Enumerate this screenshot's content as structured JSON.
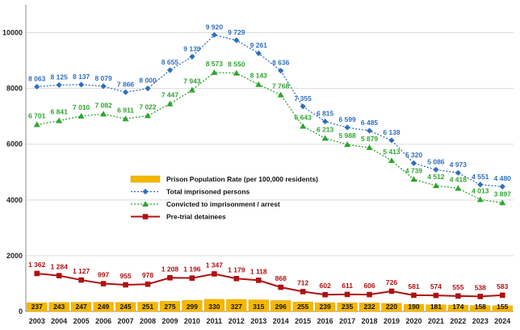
{
  "chart_data": {
    "type": "line",
    "categories": [
      "2003",
      "2004",
      "2005",
      "2006",
      "2007",
      "2008",
      "2009",
      "2010",
      "2011",
      "2012",
      "2013",
      "2014",
      "2015",
      "2016",
      "2017",
      "2018",
      "2019",
      "2020",
      "2021",
      "2022",
      "2023",
      "2024"
    ],
    "ylim": [
      0,
      11000
    ],
    "yticks": [
      0,
      2000,
      4000,
      6000,
      8000,
      10000
    ],
    "ytick_labels": [
      "0",
      "2000",
      "4000",
      "6000",
      "8000",
      "10000"
    ],
    "grid": true,
    "legend_position": "center-left",
    "series": [
      {
        "key": "rate",
        "name": "Prison Population Rate (per 100,000 residents)",
        "type": "bar",
        "color": "#f5b800",
        "values": [
          237,
          243,
          247,
          249,
          245,
          251,
          275,
          299,
          330,
          327,
          315,
          296,
          255,
          239,
          235,
          232,
          220,
          190,
          181,
          174,
          158,
          155
        ],
        "labels": [
          "237",
          "243",
          "247",
          "249",
          "245",
          "251",
          "275",
          "299",
          "330",
          "327",
          "315",
          "296",
          "255",
          "239",
          "235",
          "232",
          "220",
          "190",
          "181",
          "174",
          "158",
          "155"
        ]
      },
      {
        "key": "total",
        "name": "Total imprisoned persons",
        "type": "line",
        "color": "#2f6fbf",
        "marker": "diamond",
        "values": [
          8063,
          8125,
          8137,
          8079,
          7866,
          8000,
          8655,
          9139,
          9920,
          9729,
          9261,
          8636,
          7355,
          6815,
          6599,
          6485,
          6138,
          5320,
          5086,
          4973,
          4551,
          4480
        ],
        "labels": [
          "8 063",
          "8 125",
          "8 137",
          "8 079",
          "7 866",
          "8 000",
          "8 655",
          "9 139",
          "9 920",
          "9 729",
          "9 261",
          "8 636",
          "7 355",
          "6 815",
          "6 599",
          "6 485",
          "6 138",
          "5 320",
          "5 086",
          "4 973",
          "4 551",
          "4 480"
        ]
      },
      {
        "key": "conv",
        "name": "Convicted to imprisonment / arrest",
        "type": "line",
        "color": "#2fa530",
        "marker": "triangle",
        "values": [
          6701,
          6841,
          7010,
          7082,
          6911,
          7022,
          7447,
          7943,
          8573,
          8550,
          8143,
          7768,
          6643,
          6213,
          5988,
          5879,
          5413,
          4739,
          4512,
          4418,
          4013,
          3897
        ],
        "labels": [
          "6 701",
          "6 841",
          "7 010",
          "7 082",
          "6 911",
          "7 022",
          "7 447",
          "7 943",
          "8 573",
          "8 550",
          "8 143",
          "7 768",
          "6 643",
          "6 213",
          "5 988",
          "5 879",
          "5 413",
          "4 739",
          "4 512",
          "4 418",
          "4 013",
          "3 897"
        ]
      },
      {
        "key": "pre",
        "name": "Pre-trial detainees",
        "type": "line",
        "color": "#b01010",
        "marker": "square",
        "values": [
          1362,
          1284,
          1127,
          997,
          955,
          978,
          1208,
          1196,
          1347,
          1179,
          1118,
          868,
          712,
          602,
          611,
          606,
          726,
          581,
          574,
          555,
          538,
          583
        ],
        "labels": [
          "1 362",
          "1 284",
          "1 127",
          "997",
          "955",
          "978",
          "1 208",
          "1 196",
          "1 347",
          "1 179",
          "1 118",
          "868",
          "712",
          "602",
          "611",
          "606",
          "726",
          "581",
          "574",
          "555",
          "538",
          "583"
        ]
      }
    ]
  }
}
